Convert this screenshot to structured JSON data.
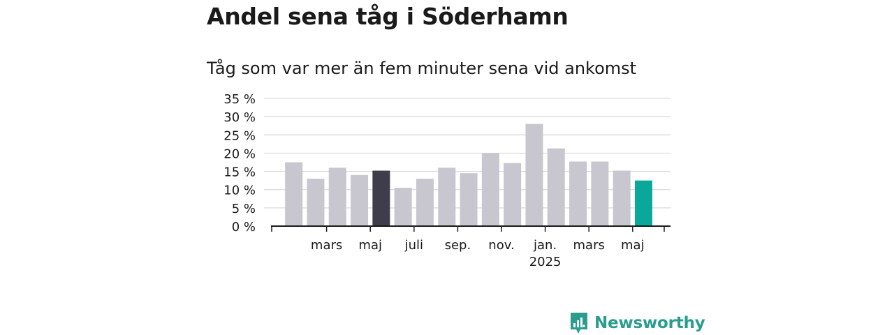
{
  "title": "Andel sena tåg i Söderhamn",
  "subtitle": "Tåg som var mer än fem minuter sena vid ankomst",
  "brand": {
    "name": "Newsworthy",
    "icon": "newsworthy-logo-icon",
    "color": "#2a9d8f"
  },
  "colors": {
    "bar": "#c8c7cf",
    "highlight_dark": "#3f3d4a",
    "highlight_last": "#0aa89a",
    "grid": "#d9d9d9",
    "axis": "#1a1a1a"
  },
  "chart_data": {
    "type": "bar",
    "title": "Andel sena tåg i Söderhamn",
    "subtitle": "Tåg som var mer än fem minuter sena vid ankomst",
    "xlabel": "",
    "ylabel": "",
    "ylim": [
      0,
      35
    ],
    "y_ticks": [
      0,
      5,
      10,
      15,
      20,
      25,
      30,
      35
    ],
    "y_tick_labels": [
      "0 %",
      "5 %",
      "10 %",
      "15 %",
      "20 %",
      "25 %",
      "30 %",
      "35 %"
    ],
    "values": [
      17.5,
      13,
      16,
      14,
      15.2,
      10.5,
      13,
      16,
      14.5,
      20,
      17.3,
      28,
      21.3,
      17.7,
      17.7,
      15.2,
      12.5
    ],
    "highlight": {
      "dark_index": 4,
      "last_index": 16
    },
    "x_tick_labels": [
      {
        "label": "mars",
        "slot": 1.5
      },
      {
        "label": "maj",
        "slot": 3.5
      },
      {
        "label": "juli",
        "slot": 5.5
      },
      {
        "label": "sep.",
        "slot": 7.5
      },
      {
        "label": "nov.",
        "slot": 9.5
      },
      {
        "label": "jan.",
        "slot": 11.5,
        "year": "2025"
      },
      {
        "label": "mars",
        "slot": 13.5
      },
      {
        "label": "maj",
        "slot": 15.5
      }
    ],
    "grid": true,
    "legend": "none"
  }
}
